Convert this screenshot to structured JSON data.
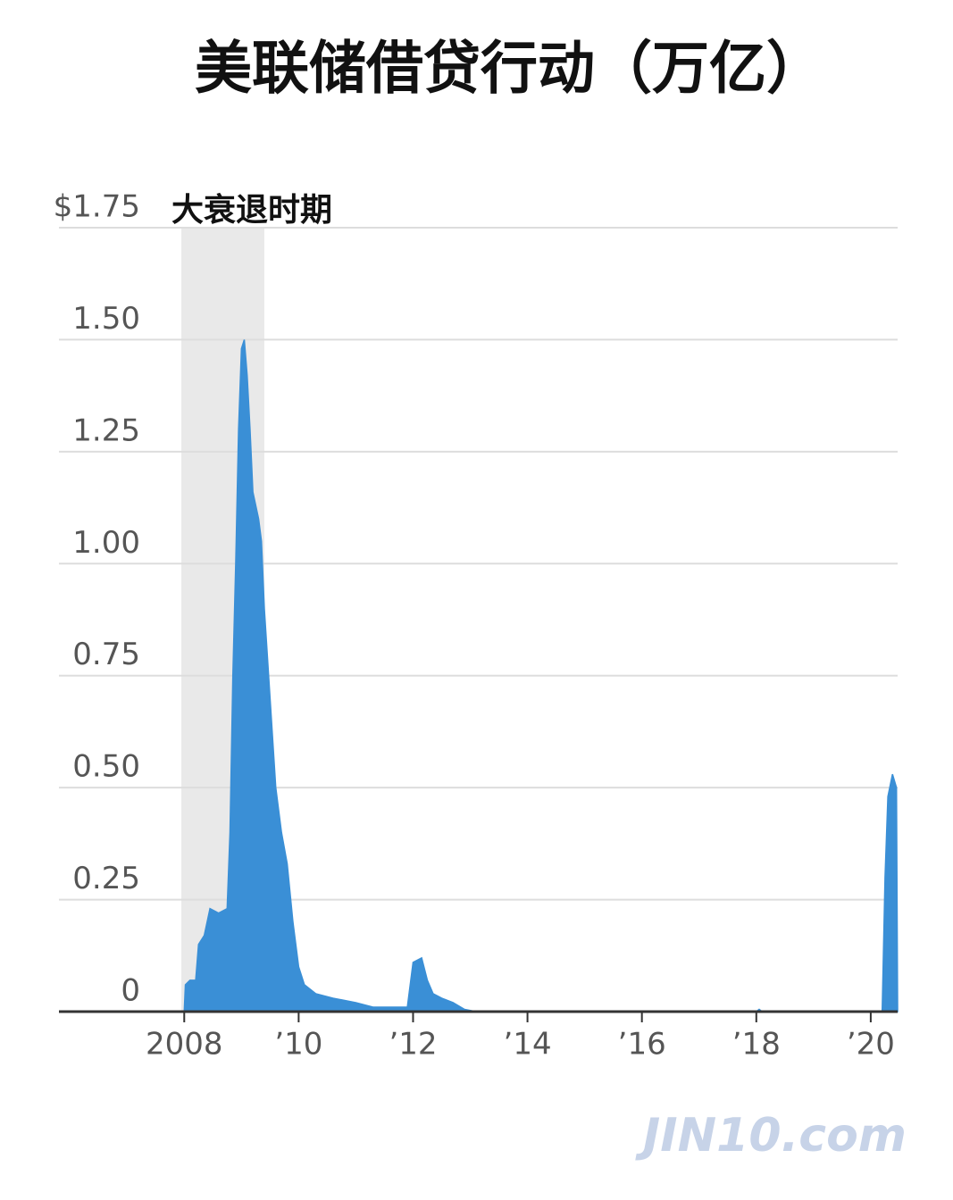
{
  "chart_data": {
    "type": "area",
    "title": "美联储借贷行动（万亿）",
    "x": [
      2008.0,
      2008.02,
      2008.1,
      2008.2,
      2008.25,
      2008.35,
      2008.45,
      2008.6,
      2008.75,
      2008.8,
      2008.85,
      2008.9,
      2008.95,
      2009.0,
      2009.05,
      2009.1,
      2009.15,
      2009.2,
      2009.3,
      2009.35,
      2009.4,
      2009.5,
      2009.6,
      2009.7,
      2009.8,
      2009.9,
      2010.0,
      2010.1,
      2010.3,
      2010.6,
      2011.0,
      2011.3,
      2011.9,
      2012.0,
      2012.15,
      2012.25,
      2012.35,
      2012.5,
      2012.7,
      2012.9,
      2013.1,
      2018.0,
      2018.05,
      2018.1,
      2020.2,
      2020.25,
      2020.3,
      2020.38,
      2020.45,
      2020.47
    ],
    "series": [
      {
        "color": "#3a8fd6",
        "values": [
          0,
          0.06,
          0.07,
          0.07,
          0.15,
          0.17,
          0.23,
          0.22,
          0.23,
          0.4,
          0.75,
          1.0,
          1.3,
          1.48,
          1.5,
          1.42,
          1.3,
          1.16,
          1.1,
          1.05,
          0.9,
          0.7,
          0.5,
          0.4,
          0.33,
          0.2,
          0.1,
          0.06,
          0.04,
          0.03,
          0.02,
          0.01,
          0.01,
          0.11,
          0.12,
          0.07,
          0.04,
          0.03,
          0.02,
          0.005,
          0,
          0,
          0.005,
          0,
          0,
          0.3,
          0.48,
          0.53,
          0.5,
          0
        ]
      }
    ],
    "xlim": [
      2005.81,
      2020.47
    ],
    "xticks": [
      2008,
      {
        "value": 2010,
        "label": "’10"
      },
      {
        "value": 2012,
        "label": "’12"
      },
      {
        "value": 2014,
        "label": "’14"
      },
      {
        "value": 2016,
        "label": "’16"
      },
      {
        "value": 2018,
        "label": "’18"
      },
      {
        "value": 2020,
        "label": "’20"
      }
    ],
    "ylim": [
      0,
      1.75
    ],
    "yticks": [
      0,
      {
        "value": 0.25,
        "label": "0.25"
      },
      {
        "value": 0.5,
        "label": "0.50"
      },
      {
        "value": 0.75,
        "label": "0.75"
      },
      {
        "value": 1,
        "label": "1.00"
      },
      {
        "value": 1.25,
        "label": "1.25"
      },
      {
        "value": 1.5,
        "label": "1.50"
      },
      {
        "value": 1.75,
        "label": "$1.75"
      }
    ],
    "grid": true,
    "shaded_region": {
      "label": "大衰退时期",
      "start": 2007.95,
      "end": 2009.4
    },
    "watermark": "JIN10.com"
  }
}
